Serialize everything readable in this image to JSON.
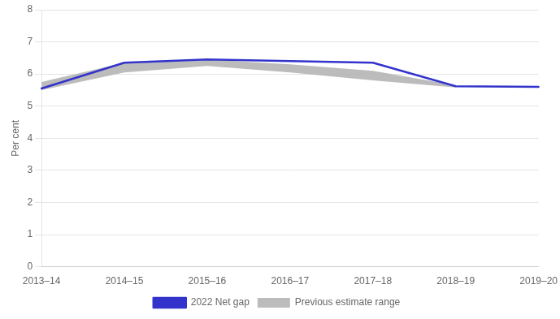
{
  "chart_data": {
    "type": "line",
    "categories": [
      "2013–14",
      "2014–15",
      "2015–16",
      "2016–17",
      "2017–18",
      "2018–19",
      "2019–20"
    ],
    "series": [
      {
        "name": "2022 Net gap",
        "color": "#3333cc",
        "values": [
          5.55,
          6.35,
          6.45,
          6.4,
          6.35,
          5.62,
          5.6
        ]
      },
      {
        "name": "Previous estimate range",
        "type": "area",
        "color": "#b0b0b0",
        "upper": [
          5.75,
          6.35,
          6.45,
          6.3,
          6.1,
          5.65,
          null
        ],
        "lower": [
          5.5,
          6.05,
          6.25,
          6.05,
          5.8,
          5.58,
          null
        ]
      }
    ],
    "y_label": "Per cent",
    "ylim": [
      0,
      8
    ],
    "yticks": [
      0,
      1,
      2,
      3,
      4,
      5,
      6,
      7,
      8
    ],
    "grid": true,
    "legend": "bottom"
  }
}
